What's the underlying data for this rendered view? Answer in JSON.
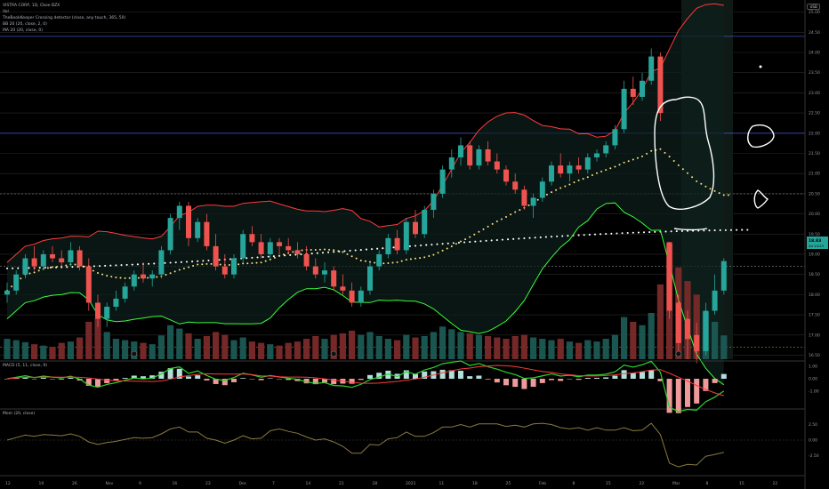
{
  "header": {
    "symbol_line": "VISTRA CORP, 1D, Cboe BZX",
    "legend_lines": [
      "Vol",
      "TheBookKeeper Crossing detector (close, any touch, 365, 50)",
      "BB 20 (20, close, 2, 0)",
      "MA 20 (20, close, 0)"
    ],
    "currency_button": "USD"
  },
  "panes": {
    "macd_label": "MACD (5, 11, close, 9)",
    "mom_label": "Mom (20, close)"
  },
  "price_axis": {
    "ticks": [
      "25.00",
      "24.50",
      "24.00",
      "23.50",
      "23.00",
      "22.50",
      "22.00",
      "21.50",
      "21.00",
      "20.50",
      "20.00",
      "19.50",
      "19.00",
      "18.50",
      "18.00",
      "17.50",
      "17.00",
      "16.50"
    ],
    "current_price_label": "18.83",
    "current_price_sub": "2d 14:23"
  },
  "macd_axis": {
    "ticks": [
      "1.00",
      "0.00",
      "-1.00"
    ]
  },
  "mom_axis": {
    "ticks": [
      "2.50",
      "0.00",
      "-2.50"
    ]
  },
  "time_axis": {
    "ticks": [
      "12",
      "19",
      "26",
      "Nov",
      "9",
      "16",
      "23",
      "Dec",
      "7",
      "14",
      "21",
      "28",
      "2021",
      "11",
      "18",
      "25",
      "Feb",
      "8",
      "15",
      "22",
      "Mar",
      "8",
      "15",
      "22"
    ]
  },
  "colors": {
    "up": "#26a69a",
    "down": "#ef5350",
    "bb_upper": "#ff3b3b",
    "bb_lower": "#3bff3b",
    "ma_dots": "#ffe082",
    "long_ma_dots": "#ffffff",
    "grid": "#2a2a2a",
    "macd_line": "#2bd42b",
    "signal_line": "#ff3b3b",
    "mom_line": "#8a7a40",
    "annotation": "#ffffff"
  },
  "chart_data": {
    "type": "candlestick",
    "y_range": [
      16.4,
      25.3
    ],
    "candles": [
      {
        "o": 18.0,
        "h": 18.3,
        "l": 17.8,
        "c": 18.1
      },
      {
        "o": 18.1,
        "h": 18.6,
        "l": 18.0,
        "c": 18.5
      },
      {
        "o": 18.5,
        "h": 19.0,
        "l": 18.4,
        "c": 18.9
      },
      {
        "o": 18.9,
        "h": 19.2,
        "l": 18.6,
        "c": 18.7
      },
      {
        "o": 18.7,
        "h": 19.1,
        "l": 18.6,
        "c": 19.0
      },
      {
        "o": 19.0,
        "h": 19.2,
        "l": 18.8,
        "c": 18.9
      },
      {
        "o": 18.9,
        "h": 19.1,
        "l": 18.7,
        "c": 18.8
      },
      {
        "o": 18.8,
        "h": 19.3,
        "l": 18.7,
        "c": 19.1
      },
      {
        "o": 19.1,
        "h": 19.2,
        "l": 18.6,
        "c": 18.7
      },
      {
        "o": 18.7,
        "h": 18.9,
        "l": 17.6,
        "c": 17.8
      },
      {
        "o": 17.8,
        "h": 18.0,
        "l": 17.2,
        "c": 17.4
      },
      {
        "o": 17.4,
        "h": 17.8,
        "l": 17.2,
        "c": 17.7
      },
      {
        "o": 17.7,
        "h": 18.1,
        "l": 17.6,
        "c": 17.9
      },
      {
        "o": 17.9,
        "h": 18.3,
        "l": 17.8,
        "c": 18.2
      },
      {
        "o": 18.2,
        "h": 18.6,
        "l": 18.1,
        "c": 18.5
      },
      {
        "o": 18.5,
        "h": 18.8,
        "l": 18.3,
        "c": 18.4
      },
      {
        "o": 18.4,
        "h": 18.6,
        "l": 18.2,
        "c": 18.5
      },
      {
        "o": 18.5,
        "h": 19.2,
        "l": 18.4,
        "c": 19.1
      },
      {
        "o": 19.1,
        "h": 20.0,
        "l": 19.0,
        "c": 19.9
      },
      {
        "o": 19.9,
        "h": 20.3,
        "l": 19.6,
        "c": 20.2
      },
      {
        "o": 20.2,
        "h": 20.3,
        "l": 19.2,
        "c": 19.4
      },
      {
        "o": 19.4,
        "h": 19.9,
        "l": 19.3,
        "c": 19.8
      },
      {
        "o": 19.8,
        "h": 20.0,
        "l": 19.1,
        "c": 19.2
      },
      {
        "o": 19.2,
        "h": 19.5,
        "l": 18.6,
        "c": 18.7
      },
      {
        "o": 18.7,
        "h": 19.0,
        "l": 18.4,
        "c": 18.5
      },
      {
        "o": 18.5,
        "h": 19.0,
        "l": 18.4,
        "c": 18.9
      },
      {
        "o": 18.9,
        "h": 19.6,
        "l": 18.8,
        "c": 19.5
      },
      {
        "o": 19.5,
        "h": 19.7,
        "l": 19.2,
        "c": 19.3
      },
      {
        "o": 19.3,
        "h": 19.5,
        "l": 18.9,
        "c": 19.0
      },
      {
        "o": 19.0,
        "h": 19.4,
        "l": 18.9,
        "c": 19.3
      },
      {
        "o": 19.3,
        "h": 19.4,
        "l": 19.0,
        "c": 19.2
      },
      {
        "o": 19.2,
        "h": 19.4,
        "l": 19.0,
        "c": 19.1
      },
      {
        "o": 19.1,
        "h": 19.3,
        "l": 18.9,
        "c": 19.0
      },
      {
        "o": 19.0,
        "h": 19.2,
        "l": 18.6,
        "c": 18.7
      },
      {
        "o": 18.7,
        "h": 18.9,
        "l": 18.4,
        "c": 18.5
      },
      {
        "o": 18.5,
        "h": 18.8,
        "l": 18.3,
        "c": 18.6
      },
      {
        "o": 18.6,
        "h": 18.7,
        "l": 18.1,
        "c": 18.2
      },
      {
        "o": 18.2,
        "h": 18.5,
        "l": 18.0,
        "c": 18.1
      },
      {
        "o": 18.1,
        "h": 18.3,
        "l": 17.7,
        "c": 17.8
      },
      {
        "o": 17.8,
        "h": 18.2,
        "l": 17.7,
        "c": 18.1
      },
      {
        "o": 18.1,
        "h": 18.8,
        "l": 18.0,
        "c": 18.7
      },
      {
        "o": 18.7,
        "h": 19.1,
        "l": 18.6,
        "c": 19.0
      },
      {
        "o": 19.0,
        "h": 19.5,
        "l": 18.9,
        "c": 19.4
      },
      {
        "o": 19.4,
        "h": 19.6,
        "l": 19.0,
        "c": 19.1
      },
      {
        "o": 19.1,
        "h": 19.9,
        "l": 19.0,
        "c": 19.8
      },
      {
        "o": 19.8,
        "h": 20.1,
        "l": 19.4,
        "c": 19.5
      },
      {
        "o": 19.5,
        "h": 20.2,
        "l": 19.4,
        "c": 20.1
      },
      {
        "o": 20.1,
        "h": 20.6,
        "l": 19.9,
        "c": 20.5
      },
      {
        "o": 20.5,
        "h": 21.2,
        "l": 20.4,
        "c": 21.1
      },
      {
        "o": 21.1,
        "h": 21.6,
        "l": 20.9,
        "c": 21.4
      },
      {
        "o": 21.4,
        "h": 21.9,
        "l": 21.2,
        "c": 21.7
      },
      {
        "o": 21.7,
        "h": 21.8,
        "l": 21.1,
        "c": 21.2
      },
      {
        "o": 21.2,
        "h": 21.7,
        "l": 21.1,
        "c": 21.6
      },
      {
        "o": 21.6,
        "h": 21.8,
        "l": 21.2,
        "c": 21.3
      },
      {
        "o": 21.3,
        "h": 21.5,
        "l": 21.0,
        "c": 21.1
      },
      {
        "o": 21.1,
        "h": 21.2,
        "l": 20.7,
        "c": 20.8
      },
      {
        "o": 20.8,
        "h": 21.0,
        "l": 20.5,
        "c": 20.6
      },
      {
        "o": 20.6,
        "h": 20.7,
        "l": 20.1,
        "c": 20.2
      },
      {
        "o": 20.2,
        "h": 20.5,
        "l": 19.9,
        "c": 20.4
      },
      {
        "o": 20.4,
        "h": 20.9,
        "l": 20.3,
        "c": 20.8
      },
      {
        "o": 20.8,
        "h": 21.3,
        "l": 20.7,
        "c": 21.2
      },
      {
        "o": 21.2,
        "h": 21.5,
        "l": 20.9,
        "c": 21.0
      },
      {
        "o": 21.0,
        "h": 21.3,
        "l": 20.8,
        "c": 21.2
      },
      {
        "o": 21.2,
        "h": 21.4,
        "l": 21.0,
        "c": 21.1
      },
      {
        "o": 21.1,
        "h": 21.5,
        "l": 21.0,
        "c": 21.4
      },
      {
        "o": 21.4,
        "h": 21.6,
        "l": 21.3,
        "c": 21.5
      },
      {
        "o": 21.5,
        "h": 21.8,
        "l": 21.4,
        "c": 21.7
      },
      {
        "o": 21.7,
        "h": 22.2,
        "l": 21.6,
        "c": 22.1
      },
      {
        "o": 22.1,
        "h": 23.3,
        "l": 22.0,
        "c": 23.1
      },
      {
        "o": 23.1,
        "h": 23.4,
        "l": 22.7,
        "c": 22.9
      },
      {
        "o": 22.9,
        "h": 23.5,
        "l": 22.8,
        "c": 23.3
      },
      {
        "o": 23.3,
        "h": 24.1,
        "l": 23.2,
        "c": 23.9
      },
      {
        "o": 23.9,
        "h": 24.0,
        "l": 22.3,
        "c": 22.5
      },
      {
        "o": 19.3,
        "h": 19.3,
        "l": 17.4,
        "c": 17.6
      },
      {
        "o": 17.8,
        "h": 18.0,
        "l": 16.5,
        "c": 16.8
      },
      {
        "o": 17.4,
        "h": 17.6,
        "l": 16.4,
        "c": 16.9
      },
      {
        "o": 17.0,
        "h": 17.3,
        "l": 16.3,
        "c": 16.6
      },
      {
        "o": 16.6,
        "h": 17.8,
        "l": 16.5,
        "c": 17.6
      },
      {
        "o": 17.6,
        "h": 18.5,
        "l": 17.5,
        "c": 18.1
      },
      {
        "o": 18.1,
        "h": 18.9,
        "l": 18.0,
        "c": 18.83
      }
    ],
    "volume": [
      30,
      28,
      25,
      22,
      20,
      18,
      24,
      26,
      32,
      55,
      60,
      40,
      30,
      28,
      26,
      24,
      22,
      35,
      50,
      45,
      38,
      30,
      34,
      40,
      36,
      28,
      32,
      26,
      24,
      22,
      20,
      24,
      26,
      30,
      34,
      30,
      36,
      38,
      42,
      36,
      40,
      34,
      30,
      28,
      36,
      32,
      34,
      40,
      48,
      44,
      40,
      38,
      36,
      34,
      32,
      30,
      34,
      36,
      32,
      30,
      28,
      30,
      26,
      24,
      28,
      26,
      30,
      36,
      62,
      55,
      50,
      68,
      110,
      170,
      135,
      115,
      95,
      70,
      55,
      35
    ],
    "ma_step": 4,
    "series": [
      {
        "name": "BB 20 (20, close, 2, 0)",
        "values": []
      },
      {
        "name": "MA 20 (20, close, 0)",
        "values": []
      }
    ]
  }
}
